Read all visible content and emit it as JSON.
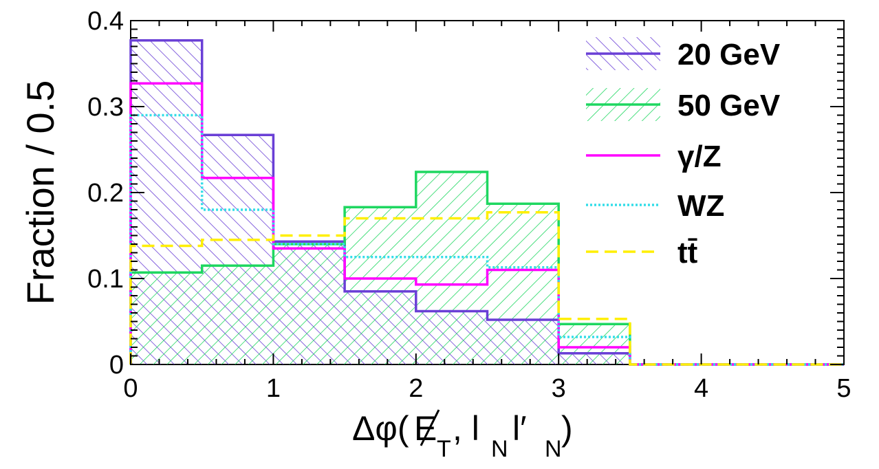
{
  "chart_data": {
    "type": "histogram",
    "title": "",
    "xlabel": "Δφ(E̸T, lN l′N)",
    "ylabel": "Fraction / 0.5",
    "xlim": [
      0,
      5
    ],
    "ylim": [
      0,
      0.4
    ],
    "bin_edges": [
      0,
      0.5,
      1.0,
      1.5,
      2.0,
      2.5,
      3.0,
      3.5,
      4.0,
      4.5,
      5.0
    ],
    "x_ticks": [
      "0",
      "1",
      "2",
      "3",
      "4",
      "5"
    ],
    "y_ticks": [
      "0",
      "0.1",
      "0.2",
      "0.3",
      "0.4"
    ],
    "grid": false,
    "legend_position": "top-right",
    "series": [
      {
        "name": "20 GeV",
        "color": "#6a3fd6",
        "style": "solid",
        "fill": "hatch-backslash",
        "values": [
          0.377,
          0.267,
          0.143,
          0.085,
          0.062,
          0.052,
          0.013,
          0,
          0,
          0
        ]
      },
      {
        "name": "50 GeV",
        "color": "#1ed760",
        "style": "solid",
        "fill": "hatch-slash",
        "values": [
          0.107,
          0.115,
          0.14,
          0.183,
          0.224,
          0.187,
          0.047,
          0,
          0,
          0
        ]
      },
      {
        "name": "γ/Z",
        "color": "#ff00ff",
        "style": "solid",
        "fill": "none",
        "values": [
          0.327,
          0.217,
          0.135,
          0.1,
          0.093,
          0.11,
          0.02,
          0,
          0,
          0
        ]
      },
      {
        "name": "WZ",
        "color": "#33dde8",
        "style": "dotted",
        "fill": "none",
        "values": [
          0.29,
          0.18,
          0.14,
          0.125,
          0.125,
          0.113,
          0.032,
          0,
          0,
          0
        ]
      },
      {
        "name": "tt̄",
        "color": "#ffef00",
        "style": "dashed",
        "fill": "none",
        "values": [
          0.138,
          0.145,
          0.15,
          0.17,
          0.17,
          0.177,
          0.053,
          0,
          0,
          0
        ]
      }
    ]
  }
}
